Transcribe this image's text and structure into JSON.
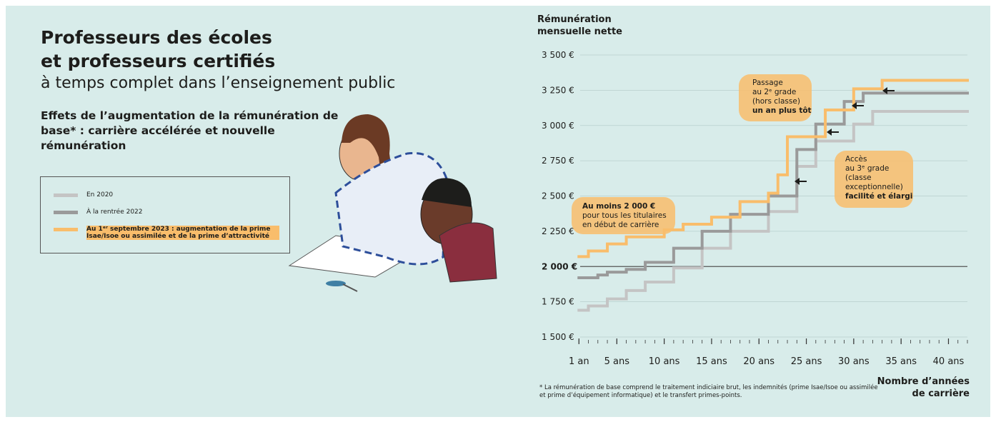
{
  "header": {
    "title": "Professeurs des écoles et professeurs certifiés",
    "subtitle": "à temps complet dans l’enseignement public",
    "heading": "Effets de l’augmentation de la rémunération de base* : carrière accélérée et nouvelle rémunération"
  },
  "footnote": "* La rémunération de base comprend le traitement indiciaire brut, les indemnités (prime Isae/Isoe ou assimilée et prime d’équipement informatique) et le transfert primes-points.",
  "chart_data": {
    "type": "step-line",
    "y_label": [
      "Rémunération",
      "mensuelle nette"
    ],
    "x_label": [
      "Nombre d’années",
      "de carrière"
    ],
    "xlim": [
      0,
      42
    ],
    "xticks": [
      {
        "value": 1,
        "label": "1 an"
      },
      {
        "value": 5,
        "label": "5 ans"
      },
      {
        "value": 10,
        "label": "10 ans"
      },
      {
        "value": 15,
        "label": "15 ans"
      },
      {
        "value": 20,
        "label": "20 ans"
      },
      {
        "value": 25,
        "label": "25 ans"
      },
      {
        "value": 30,
        "label": "30 ans"
      },
      {
        "value": 35,
        "label": "35 ans"
      },
      {
        "value": 40,
        "label": "40 ans"
      }
    ],
    "ylim": [
      1500,
      3500
    ],
    "yticks": [
      {
        "value": 1500,
        "label": "1 500 €"
      },
      {
        "value": 1750,
        "label": "1 750 €"
      },
      {
        "value": 2000,
        "label": "2 000 €"
      },
      {
        "value": 2250,
        "label": "2 250 €"
      },
      {
        "value": 2500,
        "label": "2 500 €"
      },
      {
        "value": 2750,
        "label": "2 750 €"
      },
      {
        "value": 3000,
        "label": "3 000 €"
      },
      {
        "value": 3250,
        "label": "3 250 €"
      },
      {
        "value": 3500,
        "label": "3 500 €"
      }
    ],
    "grid": true,
    "series": [
      {
        "name": "En 2020",
        "color": "#c4c4c4",
        "x": [
          1,
          2,
          4,
          6,
          8,
          11,
          14,
          17,
          21,
          24,
          26,
          30,
          32
        ],
        "values": [
          1690,
          1720,
          1770,
          1830,
          1890,
          1990,
          2130,
          2250,
          2390,
          2710,
          2890,
          3010,
          3100
        ]
      },
      {
        "name": "À la rentrée 2022",
        "color": "#9a9a9a",
        "x": [
          1,
          3,
          4,
          6,
          8,
          11,
          14,
          17,
          21,
          24,
          26,
          29,
          31
        ],
        "values": [
          1920,
          1940,
          1960,
          1980,
          2030,
          2130,
          2250,
          2370,
          2500,
          2830,
          3010,
          3170,
          3230
        ]
      },
      {
        "name": "Au 1ᵉʳ septembre 2023 : augmentation de la prime Isae/Isoe ou assimilée et de la prime d’attractivité",
        "color": "#f9bd6b",
        "x": [
          1,
          2,
          4,
          6,
          10,
          12,
          15,
          18,
          21,
          22,
          23,
          27,
          30,
          33
        ],
        "values": [
          2070,
          2110,
          2160,
          2210,
          2260,
          2300,
          2350,
          2460,
          2520,
          2650,
          2920,
          3110,
          3260,
          3320
        ]
      }
    ],
    "annotations": [
      {
        "lines": [
          "Au moins 2 000 €",
          "pour tous les titulaires",
          "en début de carrière"
        ]
      },
      {
        "lines": [
          "Passage",
          "au 2ᵉ grade",
          "(hors classe)",
          "un an plus tôt"
        ]
      },
      {
        "lines": [
          "Accès",
          "au 3ᵉ grade",
          "(classe",
          "exceptionnelle)",
          "facilité et élargi"
        ]
      }
    ]
  }
}
